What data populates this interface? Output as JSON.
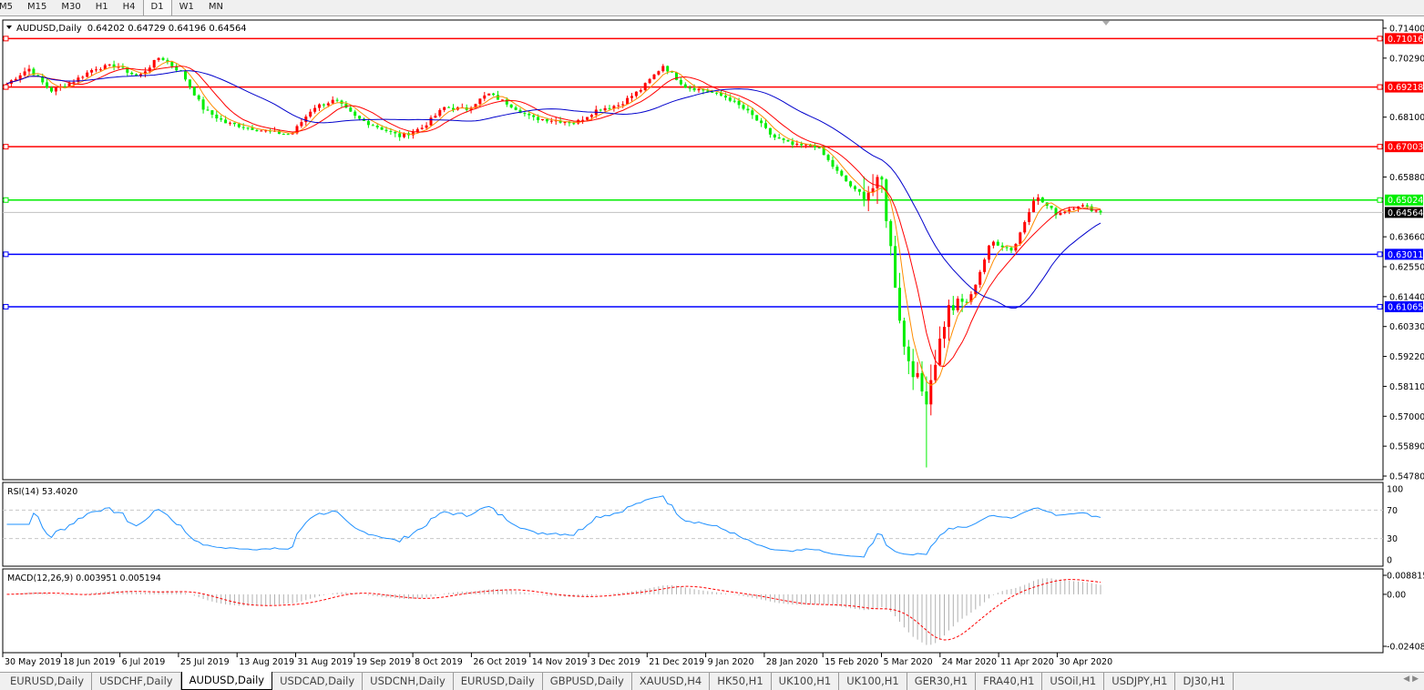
{
  "timeframes": [
    {
      "label": "M5"
    },
    {
      "label": "M15"
    },
    {
      "label": "M30"
    },
    {
      "label": "H1"
    },
    {
      "label": "H4"
    },
    {
      "label": "D1",
      "active": true
    },
    {
      "label": "W1"
    },
    {
      "label": "MN"
    }
  ],
  "header": {
    "symbol": "AUDUSD,Daily",
    "ohlc": "0.64202 0.64729 0.64196 0.64564"
  },
  "price_axis": {
    "max": 0.714,
    "min": 0.5478,
    "ticks": [
      "0.71400",
      "0.70290",
      "0.68100",
      "0.65880",
      "0.63660",
      "0.62550",
      "0.61440",
      "0.60330",
      "0.59220",
      "0.58110",
      "0.57000",
      "0.55890",
      "0.54780"
    ]
  },
  "levels": [
    {
      "value": "0.71016",
      "color": "#ff0000"
    },
    {
      "value": "0.69218",
      "color": "#ff0000"
    },
    {
      "value": "0.67003",
      "color": "#ff0000"
    },
    {
      "value": "0.65024",
      "color": "#00ee00"
    },
    {
      "value": "0.63011",
      "color": "#0000ff"
    },
    {
      "value": "0.61065",
      "color": "#0000ff"
    }
  ],
  "current_price": {
    "value": "0.64564",
    "color": "#000000"
  },
  "price_path": [
    0.6934,
    0.6991,
    0.6907,
    0.6941,
    0.6991,
    0.7002,
    0.6958,
    0.7035,
    0.6974,
    0.6839,
    0.6789,
    0.6772,
    0.6755,
    0.6745,
    0.6846,
    0.6873,
    0.6806,
    0.6772,
    0.6738,
    0.6772,
    0.6846,
    0.6839,
    0.6897,
    0.6856,
    0.6806,
    0.6799,
    0.6789,
    0.6839,
    0.6856,
    0.6914,
    0.7002,
    0.6924,
    0.6907,
    0.688,
    0.6822,
    0.6738,
    0.6704,
    0.6704,
    0.6603,
    0.6518,
    0.6569,
    0.5961,
    0.5758,
    0.6096,
    0.613,
    0.635,
    0.6316,
    0.6518,
    0.645,
    0.6485,
    0.64564
  ],
  "colors": {
    "up": "#ff0000",
    "down": "#00ee00",
    "ma_fast": "#ff8c00",
    "ma_mid": "#ff0000",
    "ma_slow": "#0000cc",
    "rsi": "#1e90ff",
    "macd_hist": "#b0b0b0",
    "macd_signal": "#ff0000"
  },
  "rsi": {
    "label": "RSI(14) 53.4020",
    "ticks": [
      "100",
      "70",
      "30",
      "0"
    ]
  },
  "macd": {
    "label": "MACD(12,26,9) 0.003951 0.005194",
    "ticks": [
      "0.008815",
      "0.00",
      "-0.024082"
    ],
    "max": 0.008815,
    "min": -0.024082
  },
  "dates": [
    "30 May 2019",
    "18 Jun 2019",
    "6 Jul 2019",
    "25 Jul 2019",
    "13 Aug 2019",
    "31 Aug 2019",
    "19 Sep 2019",
    "8 Oct 2019",
    "26 Oct 2019",
    "14 Nov 2019",
    "3 Dec 2019",
    "21 Dec 2019",
    "9 Jan 2020",
    "28 Jan 2020",
    "15 Feb 2020",
    "5 Mar 2020",
    "24 Mar 2020",
    "11 Apr 2020",
    "30 Apr 2020"
  ],
  "tabs": [
    {
      "label": "EURUSD,Daily"
    },
    {
      "label": "USDCHF,Daily"
    },
    {
      "label": "AUDUSD,Daily",
      "active": true
    },
    {
      "label": "USDCAD,Daily"
    },
    {
      "label": "USDCNH,Daily"
    },
    {
      "label": "EURUSD,Daily"
    },
    {
      "label": "GBPUSD,Daily"
    },
    {
      "label": "XAUUSD,H4"
    },
    {
      "label": "HK50,H1"
    },
    {
      "label": "UK100,H1"
    },
    {
      "label": "UK100,H1"
    },
    {
      "label": "GER30,H1"
    },
    {
      "label": "FRA40,H1"
    },
    {
      "label": "USOil,H1"
    },
    {
      "label": "USDJPY,H1"
    },
    {
      "label": "DJ30,H1"
    }
  ]
}
